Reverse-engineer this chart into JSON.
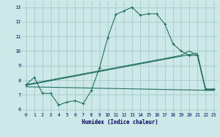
{
  "xlabel": "Humidex (Indice chaleur)",
  "bg_color": "#cce8e8",
  "line_color": "#1a6b5a",
  "grid_color": "#aacccc",
  "xlim": [
    -0.5,
    23.5
  ],
  "ylim": [
    5.8,
    13.4
  ],
  "xticks": [
    0,
    1,
    2,
    3,
    4,
    5,
    6,
    7,
    8,
    9,
    10,
    11,
    12,
    13,
    14,
    15,
    16,
    17,
    18,
    19,
    20,
    21,
    22,
    23
  ],
  "yticks": [
    6,
    7,
    8,
    9,
    10,
    11,
    12,
    13
  ],
  "line1_x": [
    0,
    1,
    2,
    3,
    4,
    5,
    6,
    7,
    8,
    9,
    10,
    11,
    12,
    13,
    14,
    15,
    16,
    17,
    18,
    19,
    20,
    21,
    22,
    23
  ],
  "line1_y": [
    7.7,
    8.2,
    7.1,
    7.1,
    6.3,
    6.5,
    6.6,
    6.4,
    7.3,
    8.85,
    10.9,
    12.5,
    12.75,
    13.0,
    12.45,
    12.55,
    12.55,
    11.85,
    10.5,
    10.0,
    9.7,
    9.7,
    7.4,
    7.4
  ],
  "line2_x": [
    0,
    21,
    22,
    23
  ],
  "line2_y": [
    7.65,
    9.85,
    7.35,
    7.35
  ],
  "line3_x": [
    0,
    23
  ],
  "line3_y": [
    7.55,
    7.3
  ],
  "line4_x": [
    0,
    19,
    20,
    21,
    22,
    23
  ],
  "line4_y": [
    7.7,
    9.7,
    10.0,
    9.7,
    7.35,
    7.35
  ]
}
